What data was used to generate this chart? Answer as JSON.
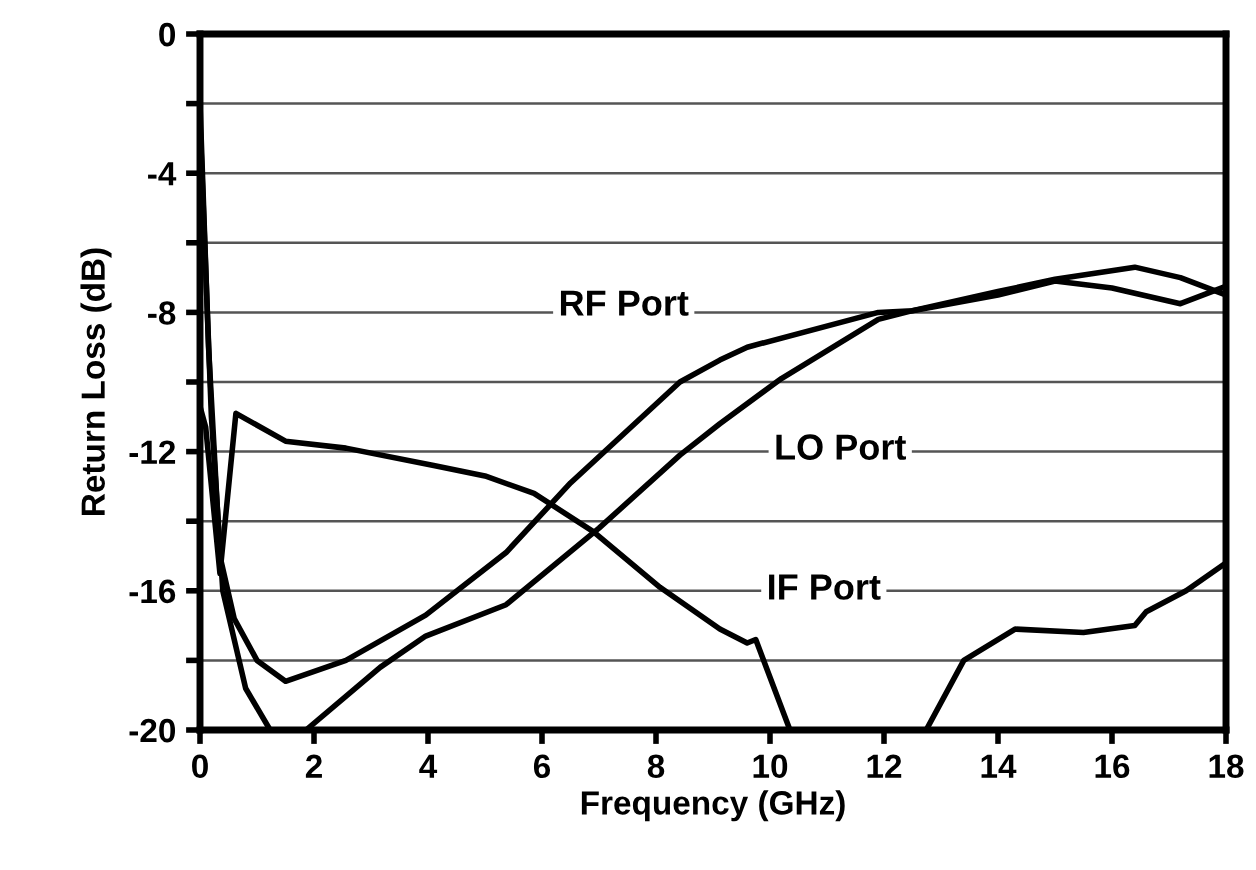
{
  "chart_data": {
    "type": "line",
    "xlabel": "Frequency (GHz)",
    "ylabel": "Return Loss (dB)",
    "xlim": [
      0,
      18
    ],
    "xticks": [
      0,
      2,
      4,
      6,
      8,
      10,
      12,
      14,
      16,
      18
    ],
    "ylim": [
      -20,
      0
    ],
    "yticks": [
      0,
      {
        "value": -2,
        "label": null
      },
      -4,
      {
        "value": -6,
        "label": null
      },
      -8,
      {
        "value": -10,
        "label": null
      },
      -12,
      {
        "value": -14,
        "label": null
      },
      -16,
      {
        "value": -18,
        "label": null
      },
      -20
    ],
    "grid": "y",
    "marker": "none",
    "line_style": "solid",
    "annotations": [
      "RF Port",
      "LO Port",
      "IF Port"
    ],
    "series": [
      {
        "color": "#000000",
        "x": [
          0,
          0.15,
          0.35,
          0.6,
          1.0,
          1.5,
          2.56,
          3.96,
          5.37,
          6.5,
          8.42,
          9.12,
          9.6,
          11.9,
          12.5,
          14.0,
          15.0,
          16.0,
          17.2,
          18
        ],
        "values": [
          -2,
          -9,
          -15,
          -16.8,
          -18,
          -18.6,
          -18.0,
          -16.7,
          -14.9,
          -12.9,
          -10.0,
          -9.37,
          -9.0,
          -8.0,
          -7.95,
          -7.5,
          -7.1,
          -7.3,
          -7.75,
          -7.25
        ]
      },
      {
        "color": "#000000",
        "x": [
          0,
          0.2,
          0.4,
          0.8,
          1.23,
          1.5,
          1.86,
          3.16,
          3.96,
          5.37,
          7.0,
          8.42,
          9.12,
          10.2,
          11.9,
          12.5,
          14.0,
          15.0,
          16.4,
          17.2,
          18
        ],
        "values": [
          -2.5,
          -11,
          -16,
          -18.8,
          -20,
          null,
          -20,
          -18.2,
          -17.3,
          -16.4,
          -14.2,
          -12.1,
          -11.2,
          -9.9,
          -8.2,
          -7.95,
          -7.4,
          -7.05,
          -6.7,
          -7.0,
          -7.5
        ]
      },
      {
        "color": "#000000",
        "x": [
          0,
          0.1,
          0.35,
          0.63,
          1.5,
          2.56,
          4.1,
          5.0,
          5.86,
          6.9,
          8.07,
          9.12,
          9.6,
          9.75,
          10.35,
          11.5,
          12.74,
          13.4,
          14.3,
          15.5,
          16.4,
          16.6,
          17.3,
          18
        ],
        "values": [
          -10.7,
          -11.3,
          -15.5,
          -10.9,
          -11.7,
          -11.9,
          -12.4,
          -12.7,
          -13.2,
          -14.3,
          -15.9,
          -17.1,
          -17.5,
          -17.4,
          -20,
          null,
          -20,
          -18.0,
          -17.1,
          -17.2,
          -17.0,
          -16.6,
          -16.0,
          -15.2
        ]
      }
    ]
  }
}
